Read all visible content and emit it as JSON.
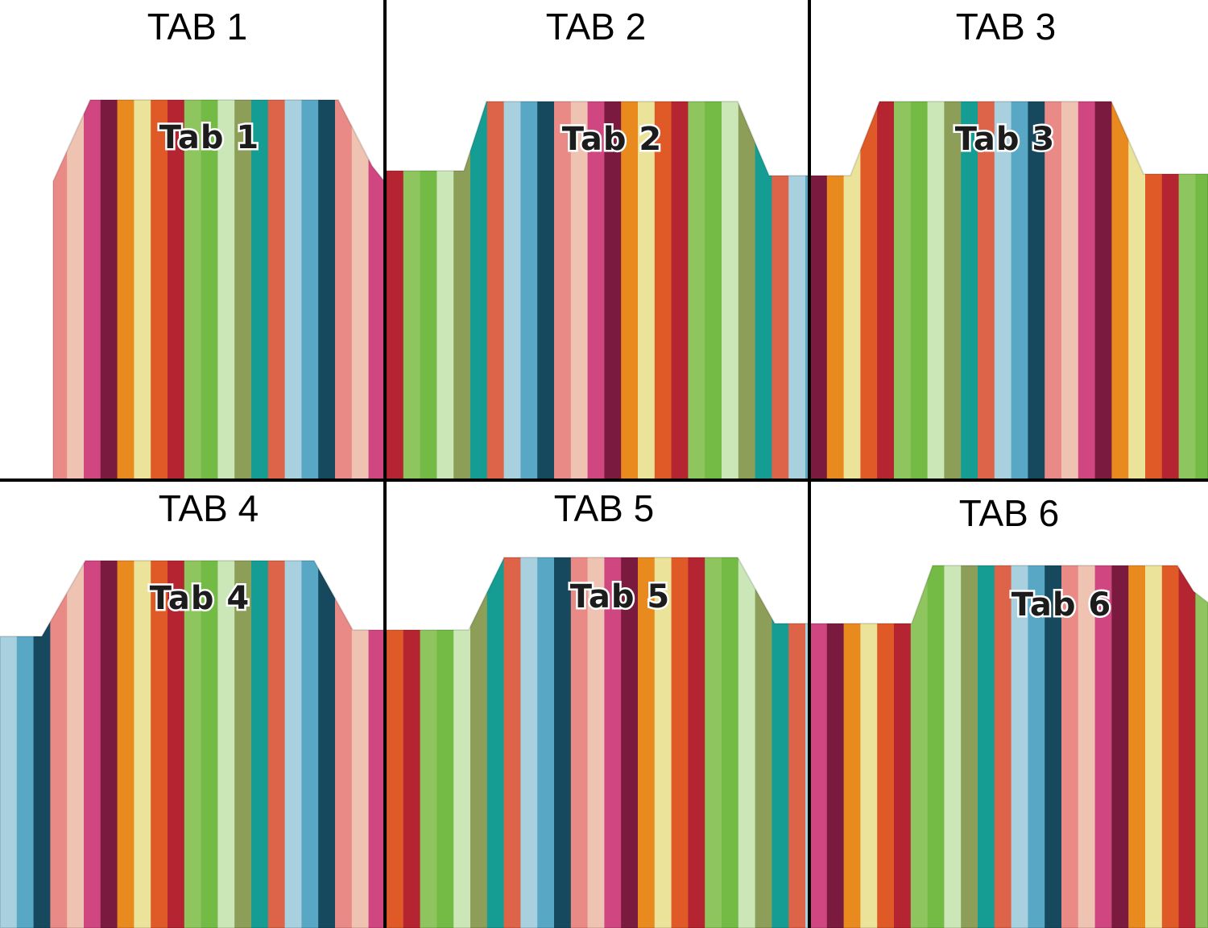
{
  "colors": {
    "palette": [
      "#a8d0df",
      "#58a7c4",
      "#16495e",
      "#ea8a86",
      "#efc3b2",
      "#cf4680",
      "#7a1a3f",
      "#e98a1f",
      "#ece39b",
      "#e05a28",
      "#b42431",
      "#8fc55e",
      "#73bb45",
      "#cbe7b8",
      "#8c9e57",
      "#159d94",
      "#dd6448"
    ],
    "divider": "#000000"
  },
  "cells": [
    {
      "title": "TAB 1",
      "label": "Tab 1",
      "stripe_offset": 0
    },
    {
      "title": "TAB 2",
      "label": "Tab 2",
      "stripe_offset": 10
    },
    {
      "title": "TAB 3",
      "label": "Tab 3",
      "stripe_offset": 6
    },
    {
      "title": "TAB 4",
      "label": "Tab 4",
      "stripe_offset": 0
    },
    {
      "title": "TAB 5",
      "label": "Tab 5",
      "stripe_offset": 9
    },
    {
      "title": "TAB 6",
      "label": "Tab 6",
      "stripe_offset": 5
    }
  ]
}
